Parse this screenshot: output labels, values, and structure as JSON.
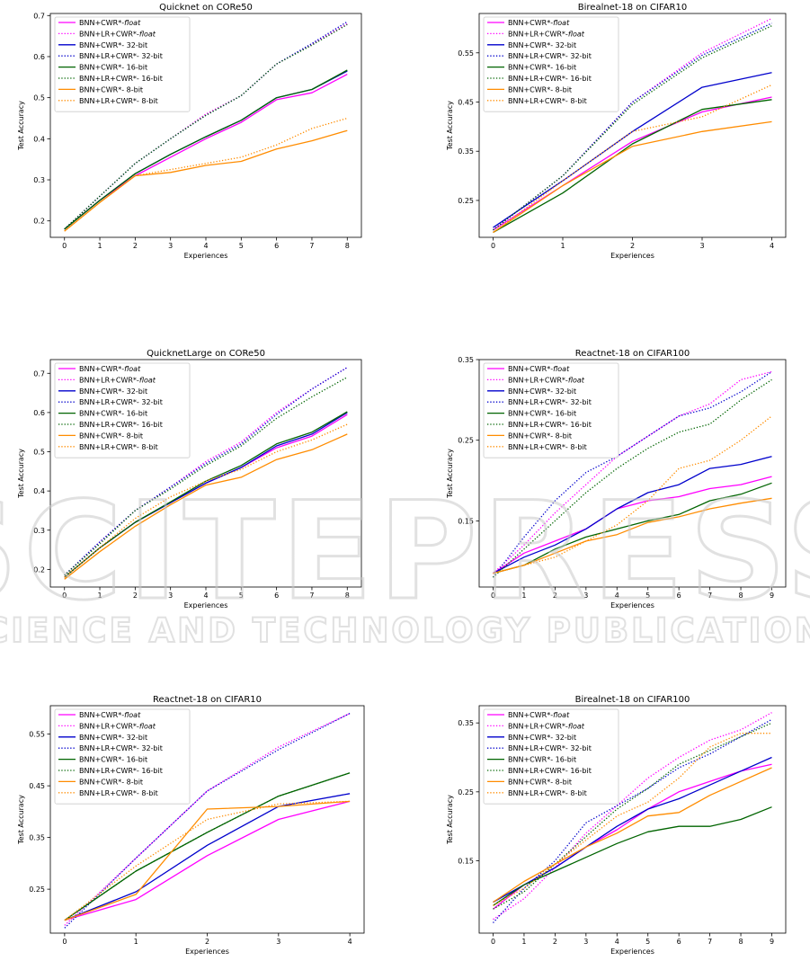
{
  "watermark": {
    "main": "SCITEPRESS",
    "sub": "SCIENCE AND TECHNOLOGY PUBLICATIONS"
  },
  "colors": {
    "float": "#ff00ff",
    "32bit": "#0000cc",
    "16bit": "#006400",
    "8bit": "#ff8c00"
  },
  "chart_data": [
    {
      "type": "line",
      "title": "Quicknet on CORe50",
      "xlabel": "Experiences",
      "ylabel": "Test Accuracy",
      "x": [
        0,
        1,
        2,
        3,
        4,
        5,
        6,
        7,
        8
      ],
      "xlim": [
        -0.4,
        8.4
      ],
      "ylim": [
        0.16,
        0.705
      ],
      "yticks": [
        0.2,
        0.3,
        0.4,
        0.5,
        0.6,
        0.7
      ],
      "ytick_labels": [
        "0.2",
        "0.3",
        "0.4",
        "0.5",
        "0.6",
        "0.7"
      ],
      "grid": false,
      "legend": "top-left",
      "series": [
        {
          "name": "BNN+CWR*-",
          "name_suffix": "float",
          "style": "solid",
          "color": "float",
          "values": [
            0.18,
            0.25,
            0.31,
            0.355,
            0.4,
            0.44,
            0.495,
            0.512,
            0.557
          ]
        },
        {
          "name": "BNN+LR+CWR*-",
          "name_suffix": "float",
          "style": "dotted",
          "color": "float",
          "values": [
            0.18,
            0.26,
            0.34,
            0.4,
            0.46,
            0.505,
            0.582,
            0.63,
            0.68
          ]
        },
        {
          "name": "BNN+CWR*- 32-bit",
          "style": "solid",
          "color": "32bit",
          "values": [
            0.18,
            0.25,
            0.315,
            0.362,
            0.405,
            0.445,
            0.5,
            0.52,
            0.565
          ]
        },
        {
          "name": "BNN+LR+CWR*- 32-bit",
          "style": "dotted",
          "color": "32bit",
          "values": [
            0.18,
            0.26,
            0.34,
            0.4,
            0.457,
            0.505,
            0.582,
            0.632,
            0.685
          ]
        },
        {
          "name": "BNN+CWR*- 16-bit",
          "style": "solid",
          "color": "16bit",
          "values": [
            0.18,
            0.25,
            0.315,
            0.362,
            0.405,
            0.445,
            0.5,
            0.52,
            0.567
          ]
        },
        {
          "name": "BNN+LR+CWR*- 16-bit",
          "style": "dotted",
          "color": "16bit",
          "values": [
            0.18,
            0.26,
            0.34,
            0.4,
            0.457,
            0.505,
            0.582,
            0.628,
            0.678
          ]
        },
        {
          "name": "BNN+CWR*- 8-bit",
          "style": "solid",
          "color": "8bit",
          "values": [
            0.175,
            0.245,
            0.31,
            0.318,
            0.335,
            0.345,
            0.375,
            0.395,
            0.42
          ]
        },
        {
          "name": "BNN+LR+CWR*- 8-bit",
          "style": "dotted",
          "color": "8bit",
          "values": [
            0.175,
            0.245,
            0.31,
            0.325,
            0.34,
            0.355,
            0.385,
            0.425,
            0.45
          ]
        }
      ]
    },
    {
      "type": "line",
      "title": "Birealnet-18 on CIFAR10",
      "xlabel": "Experiences",
      "ylabel": "Test Accuracy",
      "x": [
        0,
        1,
        2,
        3,
        4
      ],
      "xlim": [
        -0.2,
        4.2
      ],
      "ylim": [
        0.175,
        0.63
      ],
      "yticks": [
        0.25,
        0.35,
        0.45,
        0.55
      ],
      "ytick_labels": [
        "0.25",
        "0.35",
        "0.45",
        "0.55"
      ],
      "grid": false,
      "legend": "top-left",
      "series": [
        {
          "name": "BNN+CWR*-",
          "name_suffix": "float",
          "style": "solid",
          "color": "float",
          "values": [
            0.19,
            0.28,
            0.37,
            0.43,
            0.46
          ]
        },
        {
          "name": "BNN+LR+CWR*-",
          "name_suffix": "float",
          "style": "dotted",
          "color": "float",
          "values": [
            0.19,
            0.3,
            0.45,
            0.55,
            0.62
          ]
        },
        {
          "name": "BNN+CWR*- 32-bit",
          "style": "solid",
          "color": "32bit",
          "values": [
            0.195,
            0.29,
            0.39,
            0.48,
            0.51
          ]
        },
        {
          "name": "BNN+LR+CWR*- 32-bit",
          "style": "dotted",
          "color": "32bit",
          "values": [
            0.19,
            0.3,
            0.45,
            0.545,
            0.61
          ]
        },
        {
          "name": "BNN+CWR*- 16-bit",
          "style": "solid",
          "color": "16bit",
          "values": [
            0.185,
            0.265,
            0.365,
            0.435,
            0.455
          ]
        },
        {
          "name": "BNN+LR+CWR*- 16-bit",
          "style": "dotted",
          "color": "16bit",
          "values": [
            0.19,
            0.3,
            0.445,
            0.54,
            0.605
          ]
        },
        {
          "name": "BNN+CWR*- 8-bit",
          "style": "solid",
          "color": "8bit",
          "values": [
            0.185,
            0.28,
            0.36,
            0.39,
            0.41
          ]
        },
        {
          "name": "BNN+LR+CWR*- 8-bit",
          "style": "dotted",
          "color": "8bit",
          "values": [
            0.185,
            0.29,
            0.39,
            0.42,
            0.485
          ]
        }
      ]
    },
    {
      "type": "line",
      "title": "QuicknetLarge on CORe50",
      "xlabel": "Experiences",
      "ylabel": "Test Accuracy",
      "x": [
        0,
        1,
        2,
        3,
        4,
        5,
        6,
        7,
        8
      ],
      "xlim": [
        -0.4,
        8.4
      ],
      "ylim": [
        0.155,
        0.735
      ],
      "yticks": [
        0.2,
        0.3,
        0.4,
        0.5,
        0.6,
        0.7
      ],
      "ytick_labels": [
        "0.2",
        "0.3",
        "0.4",
        "0.5",
        "0.6",
        "0.7"
      ],
      "grid": false,
      "legend": "top-left",
      "series": [
        {
          "name": "BNN+CWR*-",
          "name_suffix": "float",
          "style": "solid",
          "color": "float",
          "values": [
            0.18,
            0.255,
            0.32,
            0.37,
            0.42,
            0.46,
            0.51,
            0.54,
            0.595
          ]
        },
        {
          "name": "BNN+LR+CWR*-",
          "name_suffix": "float",
          "style": "dotted",
          "color": "float",
          "values": [
            0.185,
            0.27,
            0.35,
            0.41,
            0.475,
            0.525,
            0.6,
            0.66,
            0.715
          ]
        },
        {
          "name": "BNN+CWR*- 32-bit",
          "style": "solid",
          "color": "32bit",
          "values": [
            0.18,
            0.255,
            0.32,
            0.37,
            0.42,
            0.46,
            0.515,
            0.545,
            0.6
          ]
        },
        {
          "name": "BNN+LR+CWR*- 32-bit",
          "style": "dotted",
          "color": "32bit",
          "values": [
            0.185,
            0.27,
            0.35,
            0.41,
            0.47,
            0.52,
            0.595,
            0.66,
            0.715
          ]
        },
        {
          "name": "BNN+CWR*- 16-bit",
          "style": "solid",
          "color": "16bit",
          "values": [
            0.18,
            0.255,
            0.32,
            0.372,
            0.425,
            0.465,
            0.52,
            0.55,
            0.602
          ]
        },
        {
          "name": "BNN+LR+CWR*- 16-bit",
          "style": "dotted",
          "color": "16bit",
          "values": [
            0.185,
            0.265,
            0.35,
            0.405,
            0.465,
            0.515,
            0.585,
            0.64,
            0.69
          ]
        },
        {
          "name": "BNN+CWR*- 8-bit",
          "style": "solid",
          "color": "8bit",
          "values": [
            0.175,
            0.245,
            0.31,
            0.365,
            0.415,
            0.435,
            0.48,
            0.505,
            0.545
          ]
        },
        {
          "name": "BNN+LR+CWR*- 8-bit",
          "style": "dotted",
          "color": "8bit",
          "values": [
            0.18,
            0.255,
            0.33,
            0.385,
            0.425,
            0.455,
            0.5,
            0.53,
            0.57
          ]
        }
      ]
    },
    {
      "type": "line",
      "title": "Reactnet-18 on CIFAR100",
      "xlabel": "Experiences",
      "ylabel": "Test Accuracy",
      "x": [
        0,
        1,
        2,
        3,
        4,
        5,
        6,
        7,
        8,
        9
      ],
      "xlim": [
        -0.45,
        9.45
      ],
      "ylim": [
        0.068,
        0.35
      ],
      "yticks": [
        0.15,
        0.25,
        0.35
      ],
      "ytick_labels": [
        "0.15",
        "0.25",
        "0.35"
      ],
      "grid": false,
      "legend": "top-left",
      "series": [
        {
          "name": "BNN+CWR*-",
          "name_suffix": "float",
          "style": "solid",
          "color": "float",
          "values": [
            0.085,
            0.11,
            0.125,
            0.14,
            0.165,
            0.175,
            0.18,
            0.19,
            0.195,
            0.205
          ]
        },
        {
          "name": "BNN+LR+CWR*-",
          "name_suffix": "float",
          "style": "dotted",
          "color": "float",
          "values": [
            0.085,
            0.12,
            0.16,
            0.195,
            0.23,
            0.255,
            0.28,
            0.295,
            0.325,
            0.335
          ]
        },
        {
          "name": "BNN+CWR*- 32-bit",
          "style": "solid",
          "color": "32bit",
          "values": [
            0.085,
            0.105,
            0.12,
            0.14,
            0.165,
            0.185,
            0.195,
            0.215,
            0.22,
            0.23
          ]
        },
        {
          "name": "BNN+LR+CWR*- 32-bit",
          "style": "dotted",
          "color": "32bit",
          "values": [
            0.08,
            0.13,
            0.175,
            0.21,
            0.23,
            0.255,
            0.28,
            0.29,
            0.31,
            0.335
          ]
        },
        {
          "name": "BNN+CWR*- 16-bit",
          "style": "solid",
          "color": "16bit",
          "values": [
            0.085,
            0.095,
            0.115,
            0.13,
            0.14,
            0.15,
            0.158,
            0.175,
            0.183,
            0.197
          ]
        },
        {
          "name": "BNN+LR+CWR*- 16-bit",
          "style": "dotted",
          "color": "16bit",
          "values": [
            0.08,
            0.115,
            0.15,
            0.185,
            0.215,
            0.24,
            0.26,
            0.27,
            0.3,
            0.325
          ]
        },
        {
          "name": "BNN+CWR*- 8-bit",
          "style": "solid",
          "color": "8bit",
          "values": [
            0.085,
            0.095,
            0.11,
            0.125,
            0.133,
            0.148,
            0.155,
            0.165,
            0.172,
            0.178
          ]
        },
        {
          "name": "BNN+LR+CWR*- 8-bit",
          "style": "dotted",
          "color": "8bit",
          "values": [
            0.085,
            0.095,
            0.105,
            0.125,
            0.145,
            0.175,
            0.215,
            0.225,
            0.25,
            0.28
          ]
        }
      ]
    },
    {
      "type": "line",
      "title": "Reactnet-18 on CIFAR10",
      "xlabel": "Experiences",
      "ylabel": "Test Accuracy",
      "x": [
        0,
        1,
        2,
        3,
        4
      ],
      "xlim": [
        -0.2,
        4.2
      ],
      "ylim": [
        0.165,
        0.605
      ],
      "yticks": [
        0.25,
        0.35,
        0.45,
        0.55
      ],
      "ytick_labels": [
        "0.25",
        "0.35",
        "0.45",
        "0.55"
      ],
      "grid": false,
      "legend": "top-left",
      "series": [
        {
          "name": "BNN+CWR*-",
          "name_suffix": "float",
          "style": "solid",
          "color": "float",
          "values": [
            0.19,
            0.23,
            0.315,
            0.385,
            0.42
          ]
        },
        {
          "name": "BNN+LR+CWR*-",
          "name_suffix": "float",
          "style": "dotted",
          "color": "float",
          "values": [
            0.18,
            0.31,
            0.44,
            0.525,
            0.59
          ]
        },
        {
          "name": "BNN+CWR*- 32-bit",
          "style": "solid",
          "color": "32bit",
          "values": [
            0.19,
            0.245,
            0.335,
            0.41,
            0.435
          ]
        },
        {
          "name": "BNN+LR+CWR*- 32-bit",
          "style": "dotted",
          "color": "32bit",
          "values": [
            0.175,
            0.31,
            0.44,
            0.52,
            0.59
          ]
        },
        {
          "name": "BNN+CWR*- 16-bit",
          "style": "solid",
          "color": "16bit",
          "values": [
            0.19,
            0.285,
            0.36,
            0.43,
            0.475
          ]
        },
        {
          "name": "BNN+LR+CWR*- 16-bit",
          "style": "dotted",
          "color": "16bit",
          "values": [
            0.19,
            0.285,
            0.36,
            0.43,
            0.475
          ]
        },
        {
          "name": "BNN+CWR*- 8-bit",
          "style": "solid",
          "color": "8bit",
          "values": [
            0.19,
            0.24,
            0.405,
            0.41,
            0.42
          ]
        },
        {
          "name": "BNN+LR+CWR*- 8-bit",
          "style": "dotted",
          "color": "8bit",
          "values": [
            0.19,
            0.295,
            0.385,
            0.415,
            0.42
          ]
        }
      ]
    },
    {
      "type": "line",
      "title": "Birealnet-18 on CIFAR100",
      "xlabel": "Experiences",
      "ylabel": "Test Accuracy",
      "x": [
        0,
        1,
        2,
        3,
        4,
        5,
        6,
        7,
        8,
        9
      ],
      "xlim": [
        -0.45,
        9.45
      ],
      "ylim": [
        0.045,
        0.375
      ],
      "yticks": [
        0.15,
        0.25,
        0.35
      ],
      "ytick_labels": [
        "0.15",
        "0.25",
        "0.35"
      ],
      "grid": false,
      "legend": "top-left",
      "series": [
        {
          "name": "BNN+CWR*-",
          "name_suffix": "float",
          "style": "solid",
          "color": "float",
          "values": [
            0.08,
            0.115,
            0.14,
            0.17,
            0.195,
            0.225,
            0.25,
            0.265,
            0.28,
            0.29
          ]
        },
        {
          "name": "BNN+LR+CWR*-",
          "name_suffix": "float",
          "style": "dotted",
          "color": "float",
          "values": [
            0.065,
            0.095,
            0.14,
            0.19,
            0.23,
            0.27,
            0.3,
            0.325,
            0.34,
            0.365
          ]
        },
        {
          "name": "BNN+CWR*- 32-bit",
          "style": "solid",
          "color": "32bit",
          "values": [
            0.09,
            0.115,
            0.14,
            0.17,
            0.2,
            0.225,
            0.24,
            0.26,
            0.28,
            0.3
          ]
        },
        {
          "name": "BNN+LR+CWR*- 32-bit",
          "style": "dotted",
          "color": "32bit",
          "values": [
            0.06,
            0.11,
            0.15,
            0.205,
            0.23,
            0.255,
            0.285,
            0.305,
            0.33,
            0.355
          ]
        },
        {
          "name": "BNN+CWR*- 16-bit",
          "style": "solid",
          "color": "16bit",
          "values": [
            0.085,
            0.115,
            0.135,
            0.155,
            0.175,
            0.192,
            0.2,
            0.2,
            0.21,
            0.228
          ]
        },
        {
          "name": "BNN+LR+CWR*- 16-bit",
          "style": "dotted",
          "color": "16bit",
          "values": [
            0.08,
            0.105,
            0.145,
            0.185,
            0.225,
            0.255,
            0.29,
            0.31,
            0.33,
            0.35
          ]
        },
        {
          "name": "BNN+CWR*- 8-bit",
          "style": "solid",
          "color": "8bit",
          "values": [
            0.09,
            0.12,
            0.145,
            0.17,
            0.19,
            0.215,
            0.22,
            0.245,
            0.265,
            0.285
          ]
        },
        {
          "name": "BNN+LR+CWR*- 8-bit",
          "style": "dotted",
          "color": "8bit",
          "values": [
            0.085,
            0.11,
            0.145,
            0.18,
            0.215,
            0.235,
            0.27,
            0.315,
            0.335,
            0.335
          ]
        }
      ]
    }
  ]
}
